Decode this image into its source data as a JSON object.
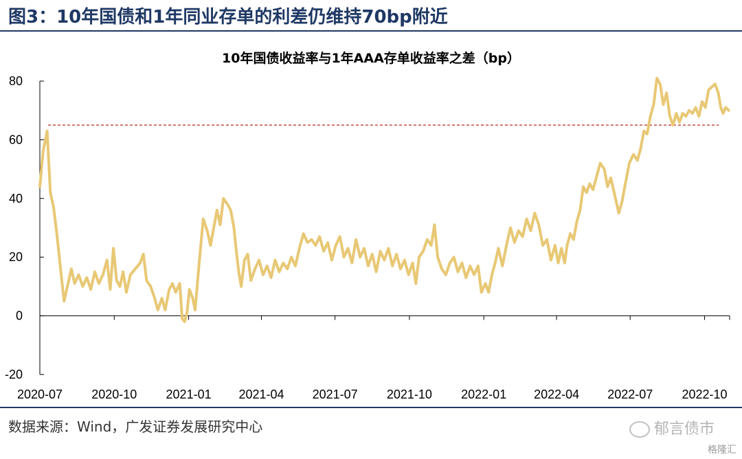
{
  "figure": {
    "title": "图3：10年国债和1年同业存单的利差仍维持70bp附近",
    "source": "数据来源：Wind，广发证券发展研究中心",
    "watermark": "郁言债市",
    "badge": "格隆汇"
  },
  "chart_data": {
    "type": "line",
    "title": "10年国债收益率与1年AAA存单收益率之差（bp）",
    "xlabel": "",
    "ylabel": "",
    "ylim": [
      -20,
      80
    ],
    "yticks": [
      -20,
      0,
      20,
      40,
      60,
      80
    ],
    "xlim": [
      "2020-07",
      "2022-11"
    ],
    "xticks": [
      "2020-07",
      "2020-10",
      "2021-01",
      "2021-04",
      "2021-07",
      "2021-10",
      "2022-01",
      "2022-04",
      "2022-07",
      "2022-10"
    ],
    "grid": false,
    "legend": "none",
    "reference_line": {
      "y": 65,
      "color": "#c0392b",
      "style": "dashed"
    },
    "series": [
      {
        "color": "#e8c875",
        "points": [
          [
            "2020-07-01",
            44
          ],
          [
            "2020-07-05",
            56
          ],
          [
            "2020-07-10",
            63
          ],
          [
            "2020-07-14",
            42
          ],
          [
            "2020-07-18",
            37
          ],
          [
            "2020-07-22",
            28
          ],
          [
            "2020-07-27",
            15
          ],
          [
            "2020-07-31",
            5
          ],
          [
            "2020-08-04",
            10
          ],
          [
            "2020-08-09",
            16
          ],
          [
            "2020-08-13",
            11
          ],
          [
            "2020-08-18",
            14
          ],
          [
            "2020-08-23",
            10
          ],
          [
            "2020-08-28",
            13
          ],
          [
            "2020-09-02",
            9
          ],
          [
            "2020-09-07",
            15
          ],
          [
            "2020-09-12",
            11
          ],
          [
            "2020-09-17",
            14
          ],
          [
            "2020-09-22",
            19
          ],
          [
            "2020-09-26",
            9
          ],
          [
            "2020-09-30",
            23
          ],
          [
            "2020-10-04",
            12
          ],
          [
            "2020-10-08",
            10
          ],
          [
            "2020-10-12",
            15
          ],
          [
            "2020-10-16",
            8
          ],
          [
            "2020-10-21",
            14
          ],
          [
            "2020-10-27",
            16
          ],
          [
            "2020-11-02",
            18
          ],
          [
            "2020-11-06",
            21
          ],
          [
            "2020-11-10",
            12
          ],
          [
            "2020-11-15",
            10
          ],
          [
            "2020-11-20",
            6
          ],
          [
            "2020-11-24",
            2
          ],
          [
            "2020-11-29",
            6
          ],
          [
            "2020-12-03",
            2
          ],
          [
            "2020-12-08",
            9
          ],
          [
            "2020-12-12",
            11
          ],
          [
            "2020-12-16",
            8
          ],
          [
            "2020-12-21",
            11
          ],
          [
            "2020-12-24",
            -1
          ],
          [
            "2020-12-27",
            -2
          ],
          [
            "2020-12-30",
            1
          ],
          [
            "2021-01-02",
            9
          ],
          [
            "2021-01-06",
            6
          ],
          [
            "2021-01-09",
            2
          ],
          [
            "2021-01-14",
            18
          ],
          [
            "2021-01-19",
            33
          ],
          [
            "2021-01-24",
            29
          ],
          [
            "2021-01-28",
            24
          ],
          [
            "2021-02-01",
            30
          ],
          [
            "2021-02-05",
            36
          ],
          [
            "2021-02-09",
            31
          ],
          [
            "2021-02-13",
            40
          ],
          [
            "2021-02-18",
            38
          ],
          [
            "2021-02-22",
            36
          ],
          [
            "2021-02-26",
            30
          ],
          [
            "2021-03-01",
            22
          ],
          [
            "2021-03-04",
            15
          ],
          [
            "2021-03-07",
            10
          ],
          [
            "2021-03-11",
            19
          ],
          [
            "2021-03-15",
            21
          ],
          [
            "2021-03-19",
            12
          ],
          [
            "2021-03-24",
            16
          ],
          [
            "2021-03-29",
            19
          ],
          [
            "2021-04-03",
            14
          ],
          [
            "2021-04-08",
            17
          ],
          [
            "2021-04-13",
            13
          ],
          [
            "2021-04-18",
            19
          ],
          [
            "2021-04-23",
            15
          ],
          [
            "2021-04-28",
            18
          ],
          [
            "2021-05-03",
            16
          ],
          [
            "2021-05-08",
            20
          ],
          [
            "2021-05-13",
            17
          ],
          [
            "2021-05-18",
            23
          ],
          [
            "2021-05-23",
            28
          ],
          [
            "2021-05-28",
            25
          ],
          [
            "2021-06-02",
            26
          ],
          [
            "2021-06-07",
            24
          ],
          [
            "2021-06-12",
            27
          ],
          [
            "2021-06-17",
            22
          ],
          [
            "2021-06-22",
            25
          ],
          [
            "2021-06-27",
            19
          ],
          [
            "2021-07-02",
            24
          ],
          [
            "2021-07-07",
            27
          ],
          [
            "2021-07-12",
            20
          ],
          [
            "2021-07-17",
            23
          ],
          [
            "2021-07-22",
            18
          ],
          [
            "2021-07-27",
            26
          ],
          [
            "2021-08-01",
            20
          ],
          [
            "2021-08-06",
            23
          ],
          [
            "2021-08-11",
            17
          ],
          [
            "2021-08-16",
            21
          ],
          [
            "2021-08-21",
            15
          ],
          [
            "2021-08-26",
            22
          ],
          [
            "2021-08-31",
            19
          ],
          [
            "2021-09-05",
            23
          ],
          [
            "2021-09-10",
            17
          ],
          [
            "2021-09-15",
            21
          ],
          [
            "2021-09-20",
            16
          ],
          [
            "2021-09-25",
            19
          ],
          [
            "2021-09-30",
            14
          ],
          [
            "2021-10-05",
            18
          ],
          [
            "2021-10-09",
            11
          ],
          [
            "2021-10-13",
            20
          ],
          [
            "2021-10-18",
            22
          ],
          [
            "2021-10-23",
            26
          ],
          [
            "2021-10-28",
            24
          ],
          [
            "2021-11-01",
            31
          ],
          [
            "2021-11-05",
            20
          ],
          [
            "2021-11-10",
            16
          ],
          [
            "2021-11-15",
            14
          ],
          [
            "2021-11-20",
            18
          ],
          [
            "2021-11-25",
            20
          ],
          [
            "2021-11-30",
            15
          ],
          [
            "2021-12-05",
            18
          ],
          [
            "2021-12-10",
            13
          ],
          [
            "2021-12-15",
            17
          ],
          [
            "2021-12-20",
            14
          ],
          [
            "2021-12-25",
            17
          ],
          [
            "2021-12-29",
            8
          ],
          [
            "2022-01-03",
            11
          ],
          [
            "2022-01-07",
            8
          ],
          [
            "2022-01-11",
            14
          ],
          [
            "2022-01-15",
            18
          ],
          [
            "2022-01-19",
            23
          ],
          [
            "2022-01-24",
            17
          ],
          [
            "2022-01-29",
            24
          ],
          [
            "2022-02-03",
            30
          ],
          [
            "2022-02-08",
            25
          ],
          [
            "2022-02-13",
            29
          ],
          [
            "2022-02-18",
            27
          ],
          [
            "2022-02-23",
            33
          ],
          [
            "2022-02-28",
            29
          ],
          [
            "2022-03-05",
            35
          ],
          [
            "2022-03-10",
            31
          ],
          [
            "2022-03-15",
            24
          ],
          [
            "2022-03-20",
            26
          ],
          [
            "2022-03-25",
            19
          ],
          [
            "2022-03-30",
            24
          ],
          [
            "2022-04-03",
            18
          ],
          [
            "2022-04-07",
            23
          ],
          [
            "2022-04-11",
            18
          ],
          [
            "2022-04-14",
            24
          ],
          [
            "2022-04-18",
            28
          ],
          [
            "2022-04-22",
            26
          ],
          [
            "2022-04-26",
            32
          ],
          [
            "2022-04-30",
            36
          ],
          [
            "2022-05-04",
            44
          ],
          [
            "2022-05-08",
            42
          ],
          [
            "2022-05-12",
            45
          ],
          [
            "2022-05-16",
            43
          ],
          [
            "2022-05-20",
            47
          ],
          [
            "2022-05-25",
            52
          ],
          [
            "2022-05-30",
            50
          ],
          [
            "2022-06-03",
            44
          ],
          [
            "2022-06-07",
            47
          ],
          [
            "2022-06-12",
            41
          ],
          [
            "2022-06-17",
            35
          ],
          [
            "2022-06-21",
            39
          ],
          [
            "2022-06-25",
            45
          ],
          [
            "2022-06-30",
            52
          ],
          [
            "2022-07-05",
            55
          ],
          [
            "2022-07-10",
            53
          ],
          [
            "2022-07-14",
            57
          ],
          [
            "2022-07-18",
            63
          ],
          [
            "2022-07-22",
            62
          ],
          [
            "2022-07-26",
            68
          ],
          [
            "2022-07-30",
            72
          ],
          [
            "2022-08-03",
            81
          ],
          [
            "2022-08-07",
            79
          ],
          [
            "2022-08-11",
            72
          ],
          [
            "2022-08-15",
            76
          ],
          [
            "2022-08-19",
            68
          ],
          [
            "2022-08-23",
            65
          ],
          [
            "2022-08-27",
            69
          ],
          [
            "2022-08-31",
            66
          ],
          [
            "2022-09-04",
            69
          ],
          [
            "2022-09-08",
            68
          ],
          [
            "2022-09-12",
            70
          ],
          [
            "2022-09-16",
            69
          ],
          [
            "2022-09-20",
            71
          ],
          [
            "2022-09-24",
            68
          ],
          [
            "2022-09-28",
            73
          ],
          [
            "2022-10-02",
            71
          ],
          [
            "2022-10-06",
            77
          ],
          [
            "2022-10-10",
            78
          ],
          [
            "2022-10-14",
            79
          ],
          [
            "2022-10-18",
            76
          ],
          [
            "2022-10-21",
            71
          ],
          [
            "2022-10-24",
            69
          ],
          [
            "2022-10-27",
            71
          ],
          [
            "2022-10-31",
            70
          ]
        ]
      }
    ]
  }
}
